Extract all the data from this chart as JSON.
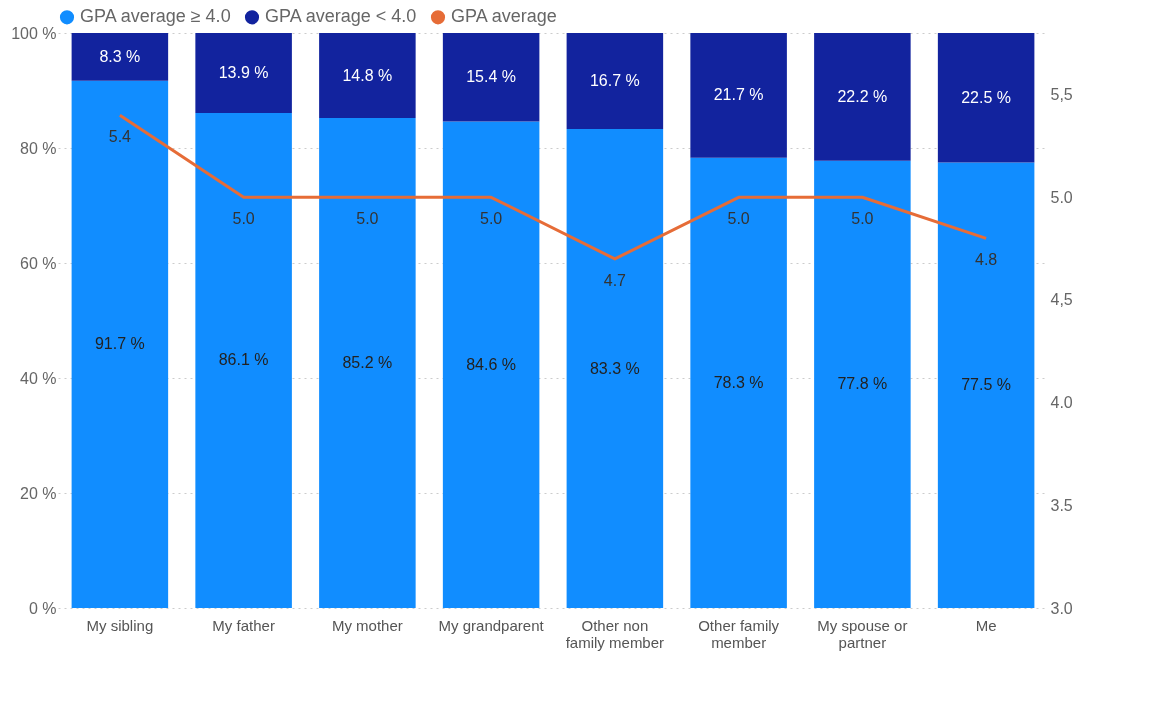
{
  "chart_data": {
    "type": "bar",
    "stacked": true,
    "categories": [
      "My sibling",
      "My father",
      "My mother",
      "My grandparent",
      "Other non family member",
      "Other family member",
      "My spouse or partner",
      "Me"
    ],
    "series": [
      {
        "name": "GPA average ≥ 4.0",
        "color": "#118dff",
        "values": [
          91.7,
          86.1,
          85.2,
          84.6,
          83.3,
          78.3,
          77.8,
          77.5
        ],
        "value_labels": [
          "91.7 %",
          "86.1 %",
          "85.2 %",
          "84.6 %",
          "83.3 %",
          "78.3 %",
          "77.8 %",
          "77.5 %"
        ]
      },
      {
        "name": "GPA average < 4.0",
        "color": "#12239e",
        "values": [
          8.3,
          13.9,
          14.8,
          15.4,
          16.7,
          21.7,
          22.2,
          22.5
        ],
        "value_labels": [
          "8.3 %",
          "13.9 %",
          "14.8 %",
          "15.4 %",
          "16.7 %",
          "21.7 %",
          "22.2 %",
          "22.5 %"
        ]
      },
      {
        "name": "GPA average",
        "type": "line",
        "axis": "y2",
        "color": "#e66c37",
        "values": [
          5.4,
          5.0,
          5.0,
          5.0,
          4.7,
          5.0,
          5.0,
          4.8
        ],
        "value_labels": [
          "5.4",
          "5.0",
          "5.0",
          "5.0",
          "4.7",
          "5.0",
          "5.0",
          "4.8"
        ]
      }
    ],
    "ylim": [
      0,
      100
    ],
    "yticks": [
      {
        "value": 0,
        "label": "0 %"
      },
      {
        "value": 20,
        "label": "20 %"
      },
      {
        "value": 40,
        "label": "40 %"
      },
      {
        "value": 60,
        "label": "60 %"
      },
      {
        "value": 80,
        "label": "80 %"
      },
      {
        "value": 100,
        "label": "100 %"
      }
    ],
    "y2lim": [
      3,
      5.8
    ],
    "y2ticks": [
      "3.0",
      {
        "value": 3.5,
        "label": "3.5"
      },
      {
        "value": 4,
        "label": "4.0"
      },
      {
        "value": 4.5,
        "label": "4,5"
      },
      {
        "value": 5,
        "label": "5.0"
      },
      {
        "value": 5.5,
        "label": "5,5"
      }
    ],
    "grid": "y",
    "legend": "top left",
    "line_style": "solid"
  }
}
